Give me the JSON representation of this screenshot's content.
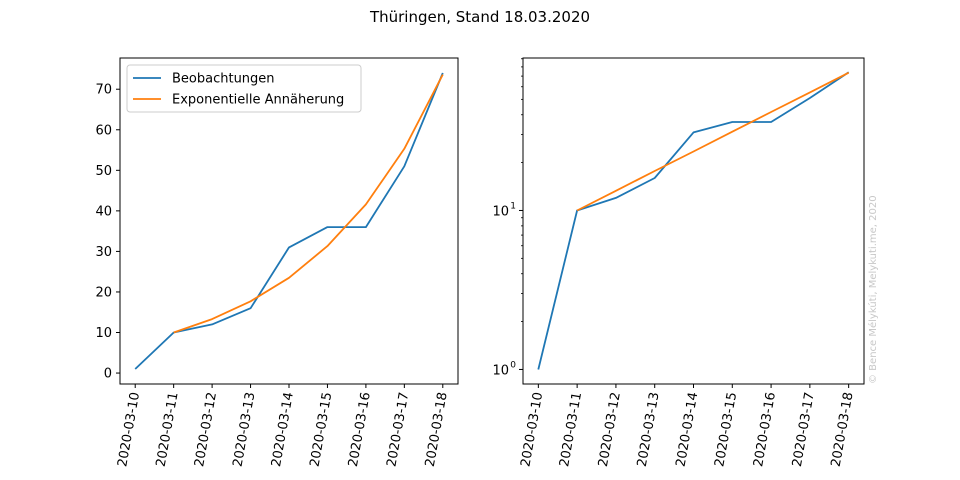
{
  "figure": {
    "title": "Thüringen, Stand 18.03.2020",
    "watermark": "© Bence Mélykúti, Melykuti.me, 2020"
  },
  "colors": {
    "observations": "#1f77b4",
    "fit": "#ff7f0e"
  },
  "chart_data": [
    {
      "type": "line",
      "yscale": "linear",
      "x": [
        "2020-03-10",
        "2020-03-11",
        "2020-03-12",
        "2020-03-13",
        "2020-03-14",
        "2020-03-15",
        "2020-03-16",
        "2020-03-17",
        "2020-03-18"
      ],
      "ylim": [
        -2.7,
        77.7
      ],
      "yticks": [
        0,
        10,
        20,
        30,
        40,
        50,
        60,
        70
      ],
      "legend": "top-left",
      "series": [
        {
          "name": "Beobachtungen",
          "x": [
            "2020-03-10",
            "2020-03-11",
            "2020-03-12",
            "2020-03-13",
            "2020-03-14",
            "2020-03-15",
            "2020-03-16",
            "2020-03-17",
            "2020-03-18"
          ],
          "values": [
            1,
            10,
            12,
            16,
            31,
            36,
            36,
            51,
            74
          ]
        },
        {
          "name": "Exponentielle Annäherung",
          "x": [
            "2020-03-11",
            "2020-03-12",
            "2020-03-13",
            "2020-03-14",
            "2020-03-15",
            "2020-03-16",
            "2020-03-17",
            "2020-03-18"
          ],
          "values": [
            10,
            13.3,
            17.7,
            23.5,
            31.3,
            41.6,
            55.3,
            73.6
          ]
        }
      ]
    },
    {
      "type": "line",
      "yscale": "log",
      "x": [
        "2020-03-10",
        "2020-03-11",
        "2020-03-12",
        "2020-03-13",
        "2020-03-14",
        "2020-03-15",
        "2020-03-16",
        "2020-03-17",
        "2020-03-18"
      ],
      "ylim": [
        0.81,
        91
      ],
      "yticks": [
        1,
        10
      ],
      "ytick_labels": [
        [
          "10",
          "0"
        ],
        [
          "10",
          "1"
        ]
      ],
      "series": [
        {
          "name": "Beobachtungen",
          "x": [
            "2020-03-10",
            "2020-03-11",
            "2020-03-12",
            "2020-03-13",
            "2020-03-14",
            "2020-03-15",
            "2020-03-16",
            "2020-03-17",
            "2020-03-18"
          ],
          "values": [
            1,
            10,
            12,
            16,
            31,
            36,
            36,
            51,
            74
          ]
        },
        {
          "name": "Exponentielle Annäherung",
          "x": [
            "2020-03-11",
            "2020-03-12",
            "2020-03-13",
            "2020-03-14",
            "2020-03-15",
            "2020-03-16",
            "2020-03-17",
            "2020-03-18"
          ],
          "values": [
            10,
            13.3,
            17.7,
            23.5,
            31.3,
            41.6,
            55.3,
            73.6
          ]
        }
      ]
    }
  ]
}
